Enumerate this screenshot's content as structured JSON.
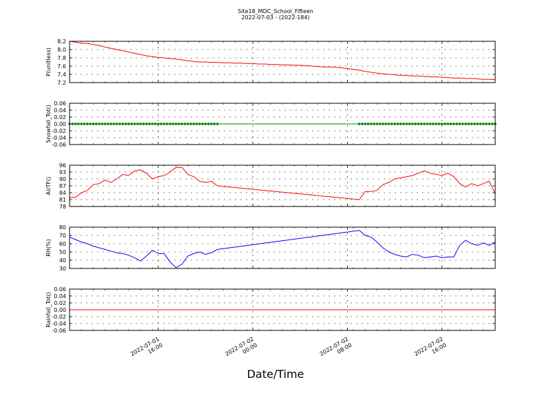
{
  "title": "Site18_MDC_School_Fifteen",
  "subtitle": "2022-07-03 - (2022-184)",
  "xlabel": "Date/Time",
  "chart_data": [
    {
      "type": "line",
      "ylabel": "P(unitless)",
      "ylim": [
        7.2,
        8.2
      ],
      "yticks": [
        "8.2",
        "8.0",
        "7.8",
        "7.6",
        "7.4",
        "7.2"
      ],
      "color": "#ff0000",
      "grid": true,
      "series": [
        {
          "x": [
            0,
            0.5,
            1,
            1.5,
            2,
            2.5,
            3,
            3.5,
            4,
            4.5,
            5,
            5.5,
            6,
            6.5,
            7,
            7.5,
            8,
            8.5,
            9,
            9.5,
            10,
            10.5,
            11,
            11.5,
            12,
            12.5,
            13,
            13.5,
            14,
            14.5,
            15,
            15.5,
            16,
            16.5,
            17,
            17.5,
            18,
            18.5,
            19,
            19.5,
            20,
            20.5,
            21,
            21.5,
            22,
            22.5,
            23,
            23.5,
            24,
            24.5,
            25,
            25.5,
            26,
            26.5,
            27,
            27.5,
            28,
            28.5,
            29,
            29.5,
            30,
            30.5,
            31,
            31.5,
            32,
            32.5,
            33,
            33.5,
            34,
            34.5,
            35,
            35.5,
            36
          ],
          "y": [
            8.2,
            8.18,
            8.15,
            8.15,
            8.12,
            8.1,
            8.06,
            8.03,
            8.0,
            7.97,
            7.94,
            7.91,
            7.88,
            7.85,
            7.83,
            7.81,
            7.8,
            7.78,
            7.77,
            7.75,
            7.73,
            7.71,
            7.7,
            7.7,
            7.69,
            7.69,
            7.68,
            7.68,
            7.67,
            7.67,
            7.66,
            7.66,
            7.65,
            7.65,
            7.64,
            7.64,
            7.63,
            7.63,
            7.62,
            7.62,
            7.61,
            7.6,
            7.59,
            7.58,
            7.58,
            7.57,
            7.56,
            7.54,
            7.52,
            7.5,
            7.47,
            7.45,
            7.43,
            7.41,
            7.4,
            7.39,
            7.38,
            7.37,
            7.36,
            7.36,
            7.35,
            7.34,
            7.34,
            7.33,
            7.32,
            7.31,
            7.31,
            7.3,
            7.3,
            7.29,
            7.28,
            7.28,
            7.27
          ]
        }
      ]
    },
    {
      "type": "line",
      "ylabel": "Snowfall_Tot()",
      "ylim": [
        -0.06,
        0.06
      ],
      "yticks": [
        "0.06",
        "0.04",
        "0.02",
        "0.00",
        "-0.02",
        "-0.04",
        "-0.06"
      ],
      "color": "#008000",
      "markers": true,
      "grid": true,
      "series": [
        {
          "x": [
            0,
            2,
            4,
            6,
            8,
            10,
            12,
            14,
            16,
            18,
            20,
            22,
            24,
            26,
            28,
            30,
            32,
            34,
            36
          ],
          "y": [
            0,
            0,
            0,
            0,
            0,
            0,
            0,
            0,
            0,
            0,
            0,
            0,
            0,
            0,
            0,
            0,
            0,
            0,
            0
          ]
        }
      ],
      "marker_ranges": [
        [
          0,
          12.5
        ],
        [
          24.5,
          36
        ]
      ]
    },
    {
      "type": "line",
      "ylabel": "AirTF()",
      "ylim": [
        78,
        96
      ],
      "yticks": [
        "96",
        "93",
        "90",
        "87",
        "84",
        "81",
        "78"
      ],
      "color": "#ff0000",
      "grid": true,
      "series": [
        {
          "x": [
            0,
            0.5,
            1,
            1.5,
            2,
            2.5,
            3,
            3.5,
            4,
            4.5,
            5,
            5.5,
            6,
            6.5,
            7,
            7.5,
            8,
            8.5,
            9,
            9.5,
            10,
            10.5,
            11,
            11.5,
            12,
            12.5,
            24.5,
            25,
            25.5,
            26,
            26.5,
            27,
            27.5,
            28,
            28.5,
            29,
            29.5,
            30,
            30.5,
            31,
            31.5,
            32,
            32.5,
            33,
            33.5,
            34,
            34.5,
            35,
            35.5,
            36
          ],
          "y": [
            82,
            82,
            84,
            85,
            87.5,
            88,
            89.5,
            88.5,
            90,
            92,
            91.5,
            93.5,
            94,
            92.5,
            90,
            91,
            91.5,
            93,
            95,
            95,
            92,
            91,
            89,
            88.5,
            89,
            87,
            81,
            84.5,
            84.5,
            85,
            87.5,
            88.5,
            90,
            90.5,
            91,
            91.5,
            92.5,
            93.5,
            92.5,
            92,
            91.5,
            92.5,
            91,
            88,
            86.5,
            88,
            87,
            88,
            89,
            83.5
          ]
        }
      ]
    },
    {
      "type": "line",
      "ylabel": "RH(%)",
      "ylim": [
        30,
        80
      ],
      "yticks": [
        "80",
        "70",
        "60",
        "50",
        "40",
        "30"
      ],
      "color": "#0000ff",
      "grid": true,
      "series": [
        {
          "x": [
            0,
            0.5,
            1,
            1.5,
            2,
            2.5,
            3,
            3.5,
            4,
            4.5,
            5,
            5.5,
            6,
            6.5,
            7,
            7.5,
            8,
            8.5,
            9,
            9.5,
            10,
            10.5,
            11,
            11.5,
            12,
            12.5,
            24.5,
            25,
            25.5,
            26,
            26.5,
            27,
            27.5,
            28,
            28.5,
            29,
            29.5,
            30,
            30.5,
            31,
            31.5,
            32,
            32.5,
            33,
            33.5,
            34,
            34.5,
            35,
            35.5,
            36
          ],
          "y": [
            68,
            65,
            62,
            60,
            57,
            55,
            53,
            51,
            49,
            48,
            46,
            43,
            39,
            45,
            52,
            48,
            48,
            38,
            31,
            35,
            45,
            48,
            50,
            47,
            49,
            53,
            76,
            70,
            68,
            62,
            55,
            50,
            47,
            45,
            44,
            47,
            46,
            43,
            44,
            45,
            43,
            44,
            44,
            58,
            64,
            60,
            58,
            61,
            58,
            62
          ]
        }
      ]
    },
    {
      "type": "line",
      "ylabel": "Rainfall_Tot()",
      "ylim": [
        -0.06,
        0.06
      ],
      "yticks": [
        "0.06",
        "0.04",
        "0.02",
        "0.00",
        "-0.02",
        "-0.04",
        "-0.06"
      ],
      "color": "#ff0000",
      "grid": true,
      "series": [
        {
          "x": [
            0,
            36
          ],
          "y": [
            0,
            0
          ]
        }
      ]
    }
  ],
  "xticks": [
    {
      "at": 7.5,
      "line1": "2022-07-01",
      "line2": "16:00"
    },
    {
      "at": 15.5,
      "line1": "2022-07-02",
      "line2": "00:00"
    },
    {
      "at": 23.5,
      "line1": "2022-07-02",
      "line2": "08:00"
    },
    {
      "at": 31.5,
      "line1": "2022-07-02",
      "line2": "16:00"
    }
  ],
  "xlim": [
    0,
    36
  ]
}
